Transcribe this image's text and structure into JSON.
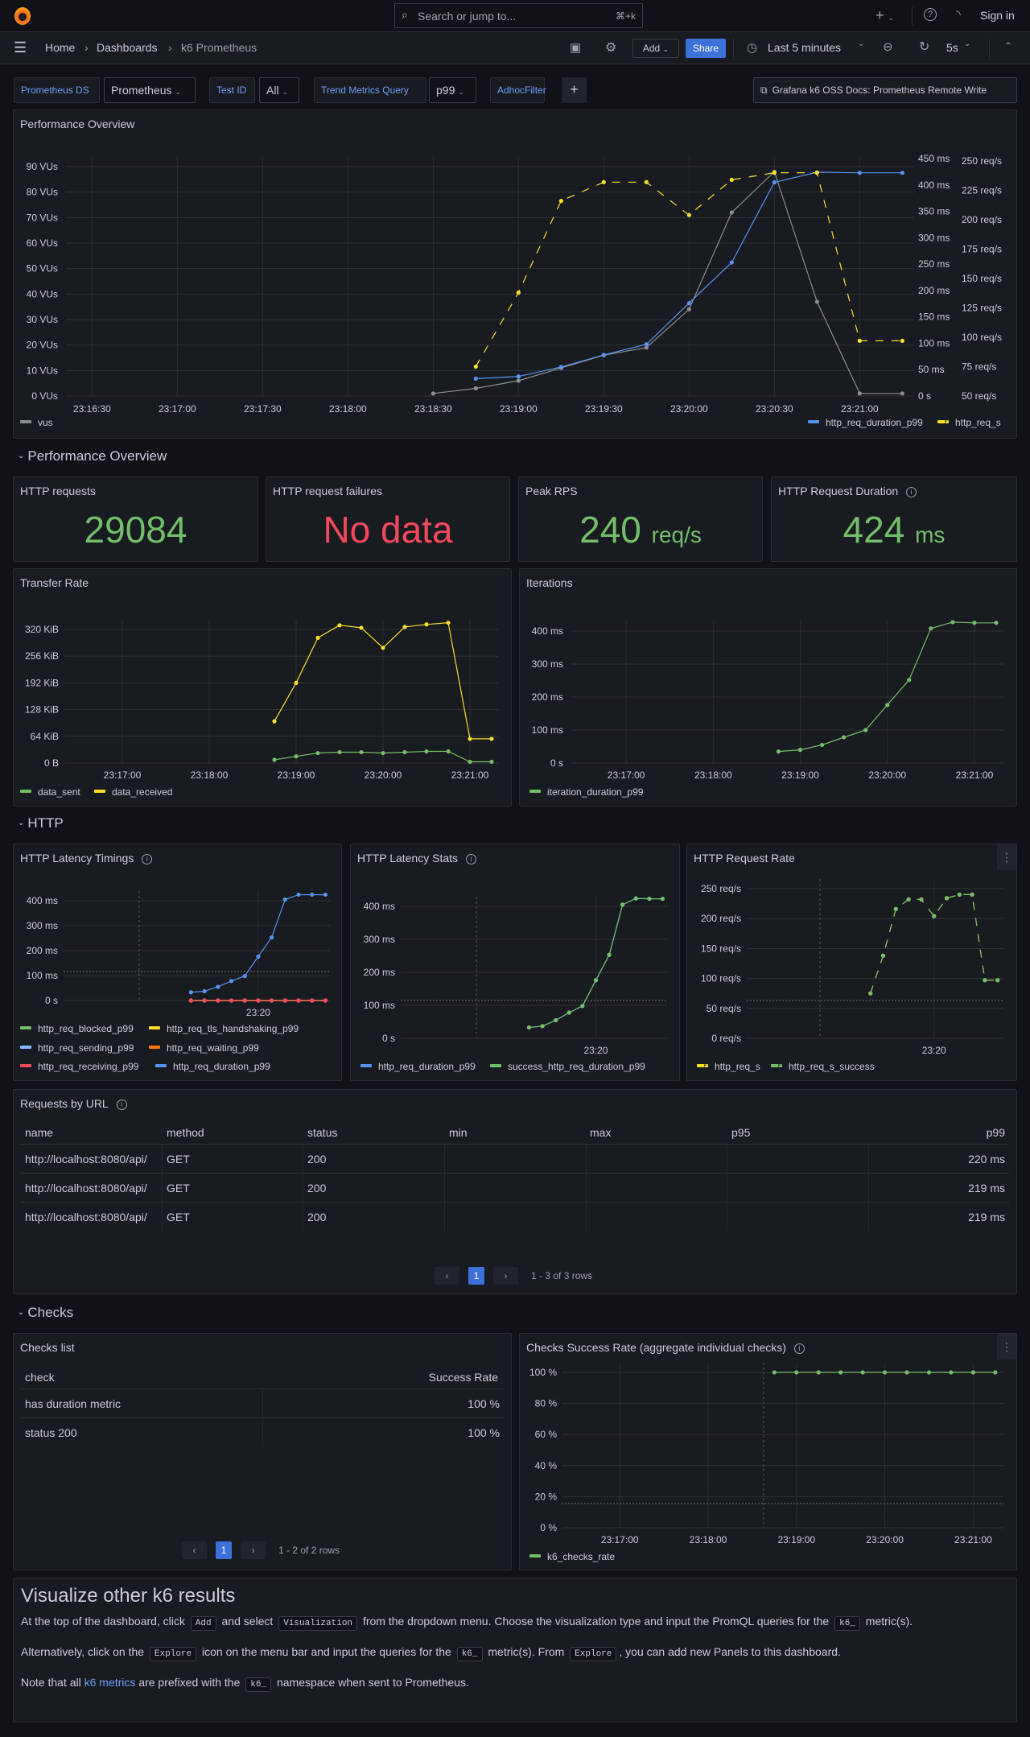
{
  "topbar": {
    "search_placeholder": "Search or jump to...",
    "search_shortcut": "⌘+k",
    "sign_in": "Sign in"
  },
  "navbar": {
    "breadcrumbs": [
      "Home",
      "Dashboards",
      "k6 Prometheus"
    ],
    "add_label": "Add",
    "share_label": "Share",
    "time_range": "Last 5 minutes",
    "refresh_interval": "5s"
  },
  "variables": {
    "datasource_label": "Prometheus DS",
    "datasource_value": "Prometheus",
    "testid_label": "Test ID",
    "testid_value": "All",
    "trend_label": "Trend Metrics Query",
    "trend_value": "p99",
    "adhoc_label": "AdhocFilter",
    "add_filter": "+",
    "docs_link": "Grafana k6 OSS Docs: Prometheus Remote Write"
  },
  "panels": {
    "perf_overview_title": "Performance Overview",
    "row_performance": "Performance Overview",
    "row_http": "HTTP",
    "row_checks": "Checks",
    "stats": [
      {
        "title": "HTTP requests",
        "value": "29084",
        "unit": "",
        "color": "#73bf69"
      },
      {
        "title": "HTTP request failures",
        "value": "No data",
        "unit": "",
        "color": "#f2495c"
      },
      {
        "title": "Peak RPS",
        "value": "240",
        "unit": "req/s",
        "color": "#73bf69"
      },
      {
        "title": "HTTP Request Duration",
        "value": "424",
        "unit": "ms",
        "color": "#73bf69"
      }
    ],
    "transfer_title": "Transfer Rate",
    "iterations_title": "Iterations",
    "latency_timings_title": "HTTP Latency Timings",
    "latency_stats_title": "HTTP Latency Stats",
    "request_rate_title": "HTTP Request Rate",
    "checks_rate_title": "Checks Success Rate (aggregate individual checks)"
  },
  "requests_table": {
    "title": "Requests by URL",
    "columns": [
      "name",
      "method",
      "status",
      "min",
      "max",
      "p95",
      "p99"
    ],
    "rows": [
      [
        "http://localhost:8080/api/",
        "GET",
        "200",
        "",
        "",
        "",
        "220 ms"
      ],
      [
        "http://localhost:8080/api/",
        "GET",
        "200",
        "",
        "",
        "",
        "219 ms"
      ],
      [
        "http://localhost:8080/api/",
        "GET",
        "200",
        "",
        "",
        "",
        "219 ms"
      ]
    ],
    "page": "1",
    "page_info": "1 - 3 of 3 rows"
  },
  "checks_table": {
    "title": "Checks list",
    "columns": [
      "check",
      "Success Rate"
    ],
    "rows": [
      [
        "has duration metric",
        "100 %"
      ],
      [
        "status 200",
        "100 %"
      ]
    ],
    "page": "1",
    "page_info": "1 - 2 of 2 rows"
  },
  "text_panel": {
    "heading": "Visualize other k6 results",
    "p1": [
      "At the top of the dashboard, click",
      "Add",
      "and select",
      "Visualization",
      "from the dropdown menu. Choose the visualization type and input the PromQL queries for the",
      "k6_",
      "metric(s)."
    ],
    "p2": [
      "Alternatively, click on the",
      "Explore",
      "icon on the menu bar and input the queries for the",
      "k6_",
      "metric(s). From",
      "Explore",
      ", you can add new Panels to this dashboard."
    ],
    "p3": [
      "Note that all",
      "k6 metrics",
      "are prefixed with the",
      "k6_",
      "namespace when sent to Prometheus."
    ]
  },
  "chart_data": [
    {
      "type": "line",
      "title": "Performance Overview",
      "x": [
        "23:18:30",
        "23:18:45",
        "23:19:00",
        "23:19:15",
        "23:19:30",
        "23:19:45",
        "23:20:00",
        "23:20:15",
        "23:20:30",
        "23:20:45",
        "23:21:00",
        "23:21:15"
      ],
      "x_range": [
        "23:16:20",
        "23:21:20"
      ],
      "x_ticks": [
        "23:16:30",
        "23:17:00",
        "23:17:30",
        "23:18:00",
        "23:18:30",
        "23:19:00",
        "23:19:30",
        "23:20:00",
        "23:20:30",
        "23:21:00"
      ],
      "x_tick_labels": [
        "23:16:30",
        "23:17:00",
        "23:17:30",
        "23:18:00",
        "23:18:30",
        "23:19:00",
        "23:19:30",
        "23:20:00",
        "23:20:30",
        "23:21:00"
      ],
      "axes": [
        {
          "id": "vus",
          "min": 0,
          "max": 90,
          "ticks": [
            0,
            10,
            20,
            30,
            40,
            50,
            60,
            70,
            80,
            90
          ],
          "tick_labels": [
            "0 VUs",
            "10 VUs",
            "20 VUs",
            "30 VUs",
            "40 VUs",
            "50 VUs",
            "60 VUs",
            "70 VUs",
            "80 VUs",
            "90 VUs"
          ]
        },
        {
          "id": "ms",
          "min": 0,
          "max": 450,
          "ticks": [
            0,
            50,
            100,
            150,
            200,
            250,
            300,
            350,
            400,
            450
          ],
          "tick_labels": [
            "0 s",
            "50 ms",
            "100 ms",
            "150 ms",
            "200 ms",
            "250 ms",
            "300 ms",
            "350 ms",
            "400 ms",
            "450 ms"
          ]
        },
        {
          "id": "reqs",
          "min": 50,
          "max": 250,
          "ticks": [
            50,
            75,
            100,
            125,
            150,
            175,
            200,
            225,
            250
          ],
          "tick_labels": [
            "50 req/s",
            "75 req/s",
            "100 req/s",
            "125 req/s",
            "150 req/s",
            "175 req/s",
            "200 req/s",
            "225 req/s",
            "250 req/s"
          ]
        }
      ],
      "series": [
        {
          "name": "vus",
          "axis": "vus",
          "color": "#8e8e8e",
          "dashed": false,
          "values": [
            1,
            3,
            6,
            11,
            16,
            19,
            34,
            72,
            88,
            37,
            1,
            1
          ]
        },
        {
          "name": "http_req_duration_p99",
          "axis": "ms",
          "color": "#5794f2",
          "dashed": false,
          "values": [
            null,
            33,
            37,
            55,
            78,
            98,
            176,
            253,
            405,
            424,
            423,
            423
          ]
        },
        {
          "name": "http_req_s",
          "axis": "reqs",
          "color": "#fade2a",
          "dashed": true,
          "values": [
            null,
            75,
            138,
            216,
            232,
            232,
            204,
            234,
            240,
            240,
            97,
            97
          ]
        }
      ],
      "grid": true,
      "legend": "bottom"
    },
    {
      "type": "line",
      "title": "Transfer Rate",
      "x": [
        "23:18:45",
        "23:19:00",
        "23:19:15",
        "23:19:30",
        "23:19:45",
        "23:20:00",
        "23:20:15",
        "23:20:30",
        "23:20:45",
        "23:21:00",
        "23:21:15"
      ],
      "x_range": [
        "23:16:20",
        "23:21:20"
      ],
      "x_ticks": [
        "23:17:00",
        "23:18:00",
        "23:19:00",
        "23:20:00",
        "23:21:00"
      ],
      "x_tick_labels": [
        "23:17:00",
        "23:18:00",
        "23:19:00",
        "23:20:00",
        "23:21:00"
      ],
      "axes": [
        {
          "id": "kib",
          "min": 0,
          "max": 320,
          "ticks": [
            0,
            64,
            128,
            192,
            256,
            320
          ],
          "tick_labels": [
            "0 B",
            "64 KiB",
            "128 KiB",
            "192 KiB",
            "256 KiB",
            "320 KiB"
          ]
        }
      ],
      "series": [
        {
          "name": "data_sent",
          "axis": "kib",
          "color": "#73bf69",
          "dashed": false,
          "values": [
            8,
            16,
            24,
            26,
            26,
            24,
            26,
            28,
            28,
            3,
            3
          ]
        },
        {
          "name": "data_received",
          "axis": "kib",
          "color": "#fade2a",
          "dashed": false,
          "values": [
            100,
            192,
            300,
            330,
            324,
            276,
            326,
            332,
            336,
            58,
            58
          ]
        }
      ],
      "grid": true,
      "legend": "bottom"
    },
    {
      "type": "line",
      "title": "Iterations",
      "x": [
        "23:18:45",
        "23:19:00",
        "23:19:15",
        "23:19:30",
        "23:19:45",
        "23:20:00",
        "23:20:15",
        "23:20:30",
        "23:20:45",
        "23:21:00",
        "23:21:15"
      ],
      "x_range": [
        "23:16:20",
        "23:21:20"
      ],
      "x_ticks": [
        "23:17:00",
        "23:18:00",
        "23:19:00",
        "23:20:00",
        "23:21:00"
      ],
      "x_tick_labels": [
        "23:17:00",
        "23:18:00",
        "23:19:00",
        "23:20:00",
        "23:21:00"
      ],
      "axes": [
        {
          "id": "ms",
          "min": 0,
          "max": 400,
          "ticks": [
            0,
            100,
            200,
            300,
            400
          ],
          "tick_labels": [
            "0 s",
            "100 ms",
            "200 ms",
            "300 ms",
            "400 ms"
          ]
        }
      ],
      "series": [
        {
          "name": "iteration_duration_p99",
          "axis": "ms",
          "color": "#73bf69",
          "dashed": false,
          "values": [
            35,
            40,
            55,
            78,
            100,
            176,
            252,
            408,
            427,
            425,
            425
          ]
        }
      ],
      "grid": true,
      "legend": "bottom"
    },
    {
      "type": "line",
      "title": "HTTP Latency Timings",
      "x": [
        "23:18:45",
        "23:19:00",
        "23:19:15",
        "23:19:30",
        "23:19:45",
        "23:20:00",
        "23:20:15",
        "23:20:30",
        "23:20:45",
        "23:21:00",
        "23:21:15"
      ],
      "x_range": [
        "23:16:20",
        "23:21:20"
      ],
      "x_ticks": [
        "23:20:00"
      ],
      "x_tick_labels": [
        "23:20"
      ],
      "axes": [
        {
          "id": "ms",
          "min": 0,
          "max": 400,
          "ticks": [
            0,
            100,
            200,
            300,
            400
          ],
          "tick_labels": [
            "0 s",
            "100 ms",
            "200 ms",
            "300 ms",
            "400 ms"
          ]
        }
      ],
      "series": [
        {
          "name": "http_req_blocked_p99",
          "axis": "ms",
          "color": "#73bf69",
          "dashed": false,
          "values": [
            0,
            0,
            0,
            0,
            0,
            0,
            0,
            0,
            0,
            0,
            0
          ]
        },
        {
          "name": "http_req_tls_handshaking_p99",
          "axis": "ms",
          "color": "#fade2a",
          "dashed": false,
          "values": [
            0,
            0,
            0,
            0,
            0,
            0,
            0,
            0,
            0,
            0,
            0
          ]
        },
        {
          "name": "http_req_sending_p99",
          "axis": "ms",
          "color": "#8ab8ff",
          "dashed": false,
          "values": [
            0,
            0,
            0,
            0,
            0,
            0,
            0,
            0,
            0,
            0,
            0
          ]
        },
        {
          "name": "http_req_waiting_p99",
          "axis": "ms",
          "color": "#ff780a",
          "dashed": false,
          "values": [
            0,
            0,
            0,
            0,
            0,
            0,
            0,
            0,
            0,
            0,
            0
          ]
        },
        {
          "name": "http_req_receiving_p99",
          "axis": "ms",
          "color": "#f2495c",
          "dashed": false,
          "values": [
            0,
            0,
            0,
            0,
            0,
            0,
            0,
            0,
            0,
            0,
            0
          ]
        },
        {
          "name": "http_req_duration_p99",
          "axis": "ms",
          "color": "#5794f2",
          "dashed": false,
          "values": [
            33,
            37,
            55,
            78,
            98,
            176,
            253,
            405,
            424,
            424,
            424
          ]
        }
      ],
      "grid": true,
      "legend": "bottom"
    },
    {
      "type": "line",
      "title": "HTTP Latency Stats",
      "x": [
        "23:18:45",
        "23:19:00",
        "23:19:15",
        "23:19:30",
        "23:19:45",
        "23:20:00",
        "23:20:15",
        "23:20:30",
        "23:20:45",
        "23:21:00",
        "23:21:15"
      ],
      "x_range": [
        "23:16:20",
        "23:21:20"
      ],
      "x_ticks": [
        "23:20:00"
      ],
      "x_tick_labels": [
        "23:20"
      ],
      "axes": [
        {
          "id": "ms",
          "min": 0,
          "max": 400,
          "ticks": [
            0,
            100,
            200,
            300,
            400
          ],
          "tick_labels": [
            "0 s",
            "100 ms",
            "200 ms",
            "300 ms",
            "400 ms"
          ]
        }
      ],
      "series": [
        {
          "name": "http_req_duration_p99",
          "axis": "ms",
          "color": "#5794f2",
          "dashed": false,
          "values": [
            33,
            37,
            55,
            78,
            98,
            176,
            253,
            405,
            424,
            423,
            423
          ]
        },
        {
          "name": "success_http_req_duration_p99",
          "axis": "ms",
          "color": "#73bf69",
          "dashed": false,
          "values": [
            33,
            37,
            55,
            78,
            98,
            176,
            253,
            405,
            424,
            423,
            423
          ]
        }
      ],
      "grid": true,
      "legend": "bottom"
    },
    {
      "type": "line",
      "title": "HTTP Request Rate",
      "x": [
        "23:18:45",
        "23:19:00",
        "23:19:15",
        "23:19:30",
        "23:19:45",
        "23:20:00",
        "23:20:15",
        "23:20:30",
        "23:20:45",
        "23:21:00",
        "23:21:15"
      ],
      "x_range": [
        "23:16:20",
        "23:21:20"
      ],
      "x_ticks": [
        "23:20:00"
      ],
      "x_tick_labels": [
        "23:20"
      ],
      "axes": [
        {
          "id": "reqs",
          "min": 0,
          "max": 250,
          "ticks": [
            0,
            50,
            100,
            150,
            200,
            250
          ],
          "tick_labels": [
            "0 req/s",
            "50 req/s",
            "100 req/s",
            "150 req/s",
            "200 req/s",
            "250 req/s"
          ]
        }
      ],
      "series": [
        {
          "name": "http_req_s",
          "axis": "reqs",
          "color": "#fade2a",
          "dashed": true,
          "values": [
            75,
            138,
            216,
            232,
            232,
            204,
            234,
            240,
            240,
            97,
            97
          ]
        },
        {
          "name": "http_req_s_success",
          "axis": "reqs",
          "color": "#73bf69",
          "dashed": true,
          "values": [
            75,
            138,
            216,
            232,
            232,
            204,
            234,
            240,
            240,
            97,
            97
          ]
        }
      ],
      "grid": true,
      "legend": "bottom"
    },
    {
      "type": "line",
      "title": "Checks Success Rate (aggregate individual checks)",
      "x": [
        "23:18:45",
        "23:19:00",
        "23:19:15",
        "23:19:30",
        "23:19:45",
        "23:20:00",
        "23:20:15",
        "23:20:30",
        "23:20:45",
        "23:21:00",
        "23:21:15"
      ],
      "x_range": [
        "23:16:20",
        "23:21:20"
      ],
      "x_ticks": [
        "23:17:00",
        "23:18:00",
        "23:19:00",
        "23:20:00",
        "23:21:00"
      ],
      "x_tick_labels": [
        "23:17:00",
        "23:18:00",
        "23:19:00",
        "23:20:00",
        "23:21:00"
      ],
      "axes": [
        {
          "id": "pct",
          "min": 0,
          "max": 100,
          "ticks": [
            0,
            20,
            40,
            60,
            80,
            100
          ],
          "tick_labels": [
            "0 %",
            "20 %",
            "40 %",
            "60 %",
            "80 %",
            "100 %"
          ]
        }
      ],
      "series": [
        {
          "name": "k6_checks_rate",
          "axis": "pct",
          "color": "#73bf69",
          "dashed": false,
          "values": [
            100,
            100,
            100,
            100,
            100,
            100,
            100,
            100,
            100,
            100,
            100
          ]
        }
      ],
      "grid": true,
      "legend": "bottom"
    }
  ]
}
